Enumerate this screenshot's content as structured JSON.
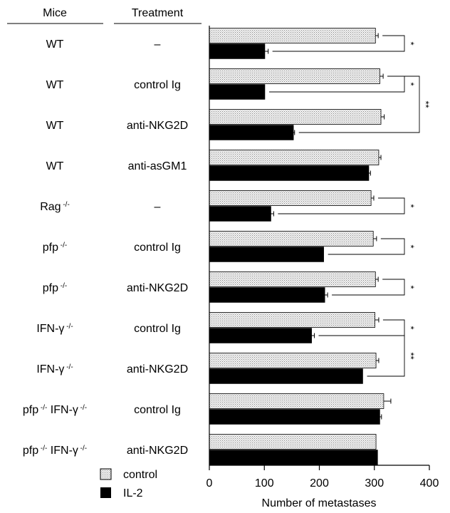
{
  "headers": {
    "mice": "Mice",
    "treatment": "Treatment"
  },
  "chart_data": {
    "type": "bar",
    "orientation": "horizontal",
    "xlabel": "Number of metastases",
    "xlim": [
      0,
      400
    ],
    "xticks": [
      0,
      100,
      200,
      300,
      400
    ],
    "grid": false,
    "legend_position": "bottom-left",
    "series": [
      {
        "name": "control",
        "color": "#e6e6e6",
        "pattern": "dotted",
        "values": [
          302,
          310,
          312,
          308,
          294,
          298,
          302,
          301,
          303,
          317,
          303
        ],
        "errors": [
          5,
          6,
          6,
          4,
          5,
          6,
          5,
          7,
          5,
          13,
          0
        ]
      },
      {
        "name": "IL-2",
        "color": "#000000",
        "values": [
          101,
          101,
          153,
          290,
          112,
          208,
          210,
          186,
          279,
          310,
          306
        ],
        "errors": [
          6,
          0,
          2,
          3,
          5,
          0,
          5,
          5,
          0,
          3,
          0
        ]
      }
    ],
    "groups": [
      {
        "mice": "WT",
        "sup": "",
        "mice2": "",
        "sup2": "",
        "treatment": "–"
      },
      {
        "mice": "WT",
        "sup": "",
        "mice2": "",
        "sup2": "",
        "treatment": "control Ig"
      },
      {
        "mice": "WT",
        "sup": "",
        "mice2": "",
        "sup2": "",
        "treatment": "anti-NKG2D"
      },
      {
        "mice": "WT",
        "sup": "",
        "mice2": "",
        "sup2": "",
        "treatment": "anti-asGM1"
      },
      {
        "mice": "Rag",
        "sup": "-/-",
        "mice2": "",
        "sup2": "",
        "treatment": "–"
      },
      {
        "mice": "pfp",
        "sup": "-/-",
        "mice2": "",
        "sup2": "",
        "treatment": "control Ig"
      },
      {
        "mice": "pfp",
        "sup": "-/-",
        "mice2": "",
        "sup2": "",
        "treatment": "anti-NKG2D"
      },
      {
        "mice": "IFN-γ",
        "sup": "-/-",
        "mice2": "",
        "sup2": "",
        "treatment": "control Ig"
      },
      {
        "mice": "IFN-γ",
        "sup": "-/-",
        "mice2": "",
        "sup2": "",
        "treatment": "anti-NKG2D"
      },
      {
        "mice": "pfp",
        "sup": "-/-",
        "mice2": "IFN-γ",
        "sup2": "-/-",
        "treatment": "control Ig"
      },
      {
        "mice": "pfp",
        "sup": "-/-",
        "mice2": "IFN-γ",
        "sup2": "-/-",
        "treatment": "anti-NKG2D"
      }
    ],
    "significance": [
      {
        "from": [
          0,
          "ctrl"
        ],
        "to": [
          0,
          "il2"
        ],
        "label": "*"
      },
      {
        "from": [
          1,
          "ctrl"
        ],
        "to": [
          1,
          "il2"
        ],
        "label": "*"
      },
      {
        "from": [
          1,
          "ctrl"
        ],
        "to": [
          2,
          "il2"
        ],
        "label": "**"
      },
      {
        "from": [
          4,
          "ctrl"
        ],
        "to": [
          4,
          "il2"
        ],
        "label": "*"
      },
      {
        "from": [
          5,
          "ctrl"
        ],
        "to": [
          5,
          "il2"
        ],
        "label": "*"
      },
      {
        "from": [
          6,
          "ctrl"
        ],
        "to": [
          6,
          "il2"
        ],
        "label": "*"
      },
      {
        "from": [
          7,
          "ctrl"
        ],
        "to": [
          7,
          "il2"
        ],
        "label": "*"
      },
      {
        "from": [
          7,
          "il2"
        ],
        "to": [
          8,
          "il2"
        ],
        "label": "**"
      }
    ]
  }
}
